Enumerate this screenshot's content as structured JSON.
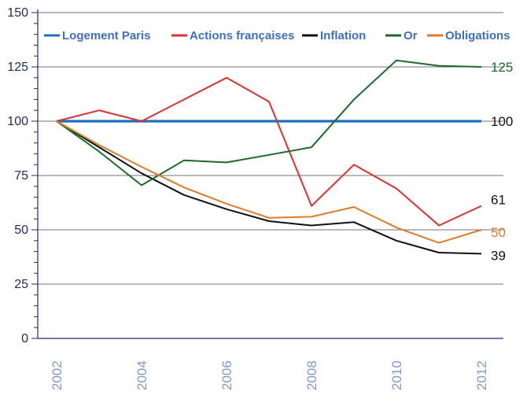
{
  "chart_data": {
    "type": "line",
    "title": "",
    "xlabel": "",
    "ylabel": "",
    "x": [
      2002,
      2003,
      2004,
      2005,
      2006,
      2007,
      2008,
      2009,
      2010,
      2011,
      2012
    ],
    "x_tick_labels": [
      "2002",
      "2004",
      "2006",
      "2008",
      "2010",
      "2012"
    ],
    "ylim": [
      0,
      150
    ],
    "y_tick_labels": [
      "0",
      "25",
      "50",
      "75",
      "100",
      "125",
      "150"
    ],
    "grid": "horizontal",
    "legend_position": "top",
    "series": [
      {
        "name": "Logement Paris",
        "color": "#1f6fbf",
        "values": [
          100,
          100,
          100,
          100,
          100,
          100,
          100,
          100,
          100,
          100,
          100
        ]
      },
      {
        "name": "Actions françaises",
        "color": "#e03030",
        "values": [
          100,
          105,
          100,
          110,
          120,
          109,
          61,
          80,
          69,
          52,
          61
        ]
      },
      {
        "name": "Inflation",
        "color": "#111111",
        "values": [
          100,
          88,
          76,
          66,
          59.5,
          54,
          52,
          53.5,
          45,
          39.5,
          39
        ]
      },
      {
        "name": "Or",
        "color": "#1a6a2a",
        "values": [
          100,
          86,
          70.5,
          82,
          81,
          84.5,
          88,
          110,
          128,
          125.5,
          125
        ]
      },
      {
        "name": "Obligations",
        "color": "#e07b2a",
        "values": [
          100,
          89,
          79,
          69.5,
          62,
          55.5,
          56,
          60.5,
          51,
          44,
          50
        ]
      }
    ],
    "end_labels": [
      {
        "text": "125",
        "color": "#1a6a2a",
        "value": 125
      },
      {
        "text": "100",
        "color": "#111111",
        "value": 100
      },
      {
        "text": "61",
        "color": "#111111",
        "value": 61
      },
      {
        "text": "50",
        "color": "#e07b2a",
        "value": 50
      },
      {
        "text": "39",
        "color": "#111111",
        "value": 39
      }
    ]
  }
}
